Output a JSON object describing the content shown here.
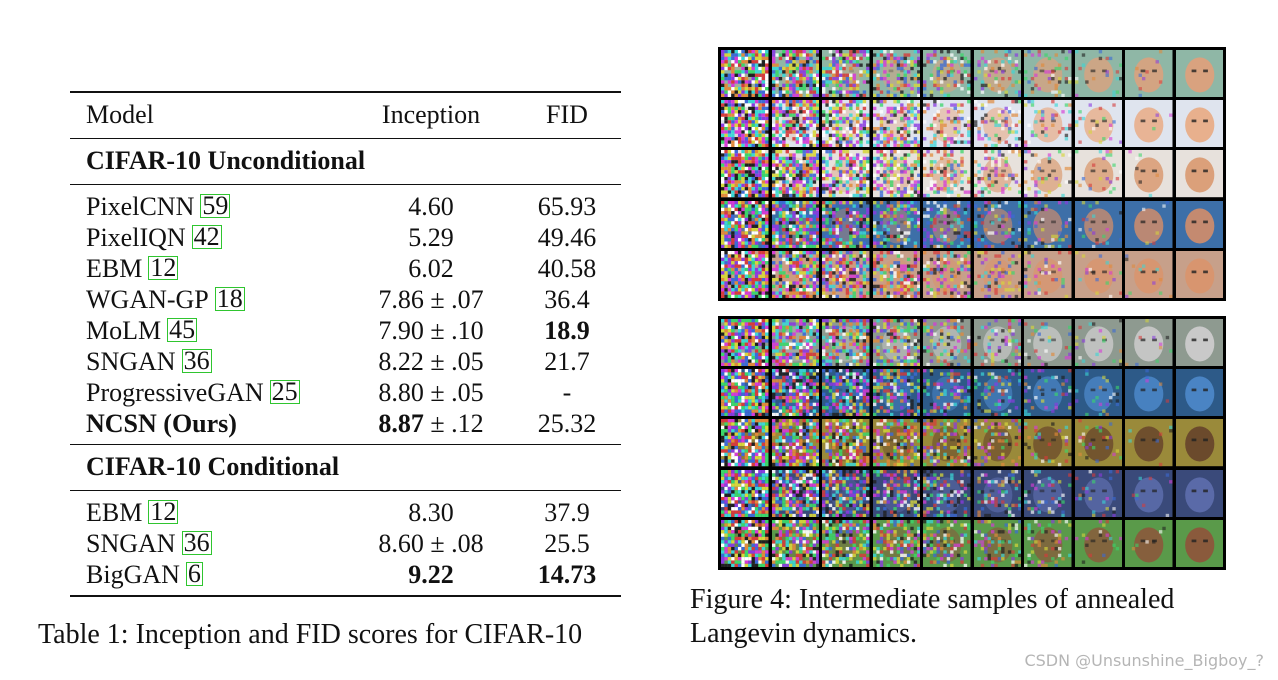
{
  "table": {
    "headers": {
      "model": "Model",
      "inception": "Inception",
      "fid": "FID"
    },
    "sections": [
      {
        "title": "CIFAR-10 Unconditional",
        "rows": [
          {
            "model": "PixelCNN",
            "cite": "59",
            "inception": "4.60",
            "fid": "65.93",
            "model_bold": false,
            "inception_bold": false,
            "fid_bold": false
          },
          {
            "model": "PixelIQN",
            "cite": "42",
            "inception": "5.29",
            "fid": "49.46",
            "model_bold": false,
            "inception_bold": false,
            "fid_bold": false
          },
          {
            "model": "EBM",
            "cite": "12",
            "inception": "6.02",
            "fid": "40.58",
            "model_bold": false,
            "inception_bold": false,
            "fid_bold": false
          },
          {
            "model": "WGAN-GP",
            "cite": "18",
            "inception": "7.86 ± .07",
            "fid": "36.4",
            "model_bold": false,
            "inception_bold": false,
            "fid_bold": false
          },
          {
            "model": "MoLM",
            "cite": "45",
            "inception": "7.90 ± .10",
            "fid": "18.9",
            "model_bold": false,
            "inception_bold": false,
            "fid_bold": true
          },
          {
            "model": "SNGAN",
            "cite": "36",
            "inception": "8.22 ± .05",
            "fid": "21.7",
            "model_bold": false,
            "inception_bold": false,
            "fid_bold": false
          },
          {
            "model": "ProgressiveGAN",
            "cite": "25",
            "inception": "8.80 ± .05",
            "fid": "-",
            "model_bold": false,
            "inception_bold": false,
            "fid_bold": false
          },
          {
            "model": "NCSN (Ours)",
            "cite": "",
            "inception_main": "8.87",
            "inception_rest": " ± .12",
            "fid": "25.32",
            "model_bold": true,
            "inception_bold": true,
            "fid_bold": false
          }
        ]
      },
      {
        "title": "CIFAR-10 Conditional",
        "rows": [
          {
            "model": "EBM",
            "cite": "12",
            "inception": "8.30",
            "fid": "37.9",
            "model_bold": false,
            "inception_bold": false,
            "fid_bold": false
          },
          {
            "model": "SNGAN",
            "cite": "36",
            "inception": "8.60 ± .08",
            "fid": "25.5",
            "model_bold": false,
            "inception_bold": false,
            "fid_bold": false
          },
          {
            "model": "BigGAN",
            "cite": "6",
            "inception": "9.22",
            "fid": "14.73",
            "model_bold": false,
            "inception_bold": true,
            "fid_bold": true
          }
        ]
      }
    ]
  },
  "table_caption": "Table 1: Inception and FID scores for CIFAR-10",
  "figure_caption": [
    "Figure 4:  Intermediate samples of annealed",
    "Langevin dynamics."
  ],
  "figure": {
    "columns": 10,
    "rows": 5,
    "top_grid_colors": [
      "#d9a27f",
      "#e8b08d",
      "#dba07a",
      "#c48a70",
      "#d8956f"
    ],
    "top_grid_backgrounds": [
      "#8fb7a6",
      "#dfe4ee",
      "#e7e1dc",
      "#3d6fa8",
      "#c7a08a"
    ],
    "bottom_grid_colors": [
      "#c9c9c9",
      "#4a84c4",
      "#6b4a2c",
      "#5a6aa8",
      "#8a5a3c"
    ],
    "bottom_grid_backgrounds": [
      "#8e9a90",
      "#2d5a88",
      "#9a8a3a",
      "#3a4a7a",
      "#5a9a4a"
    ]
  },
  "watermark": "CSDN @Unsunshine_Bigboy_?"
}
